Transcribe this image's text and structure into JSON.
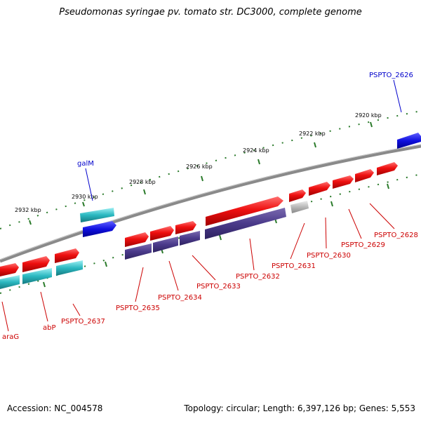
{
  "title": "Pseudomonas syringae pv. tomato str. DC3000, complete genome",
  "footer": {
    "accession": "Accession: NC_004578",
    "topology": "Topology: circular; Length: 6,397,126 bp; Genes: 5,553"
  },
  "colors": {
    "backbone": "#888888",
    "tick": "#2a7a2a",
    "forward_gene": "#e81414",
    "reverse_gene": "#4a3a8a",
    "cyan_gene": "#2ab8c0",
    "blue_gene": "#1010e0",
    "grey_gene": "#b8b8b8",
    "red_label": "#cc0000",
    "blue_label": "#0000cc"
  },
  "scale_labels": [
    "2932 kbp",
    "2930 kbp",
    "2928 kbp",
    "2926 kbp",
    "2924 kbp",
    "2922 kbp",
    "2920 kbp"
  ],
  "gene_labels": {
    "red": [
      "araG",
      "abP",
      "PSPTO_2637",
      "PSPTO_2635",
      "PSPTO_2634",
      "PSPTO_2633",
      "PSPTO_2632",
      "PSPTO_2631",
      "PSPTO_2630",
      "PSPTO_2629",
      "PSPTO_2628"
    ],
    "blue": [
      "galM",
      "PSPTO_2626"
    ]
  }
}
